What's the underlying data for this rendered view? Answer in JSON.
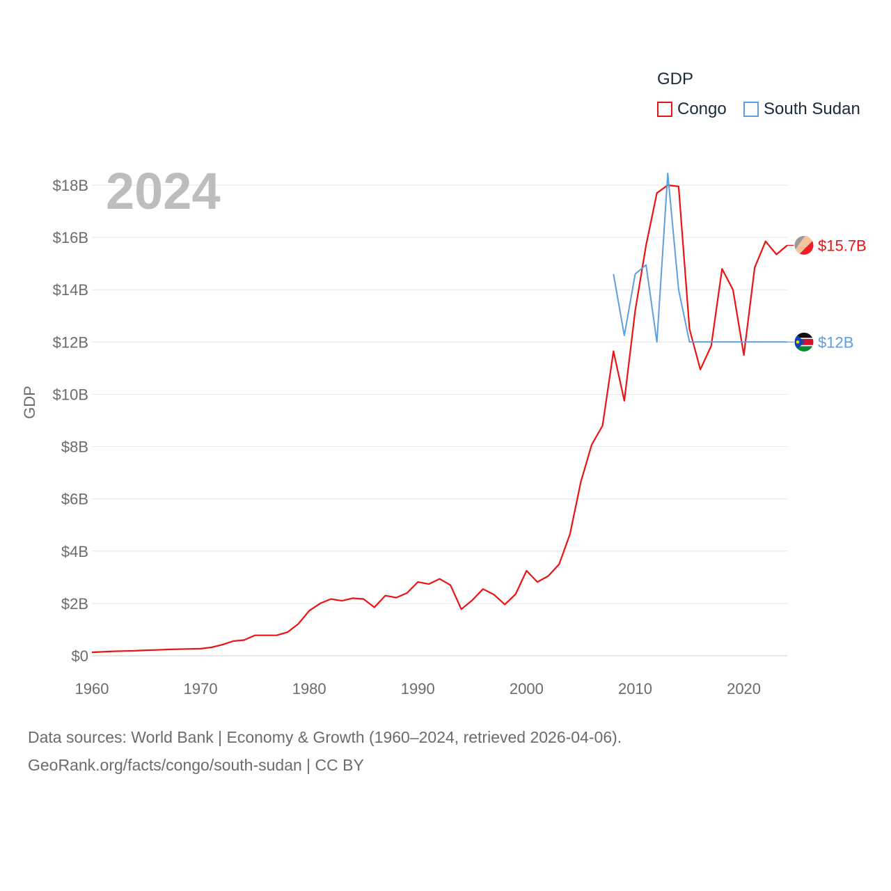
{
  "legend": {
    "title": "GDP",
    "items": [
      {
        "label": "Congo",
        "color": "#ee1111"
      },
      {
        "label": "South Sudan",
        "color": "#5aa0e0"
      }
    ]
  },
  "year_label": "2024",
  "end_labels": {
    "congo": "$15.7B",
    "south_sudan": "$12B"
  },
  "source": {
    "line1": "Data sources: World Bank | Economy & Growth (1960–2024, retrieved 2026-04-06).",
    "line2": "GeoRank.org/facts/congo/south-sudan | CC BY"
  },
  "chart_data": {
    "type": "line",
    "title": "GDP",
    "xlabel": "",
    "ylabel": "GDP",
    "xlim": [
      1960,
      2024
    ],
    "ylim": [
      0,
      18
    ],
    "y_unit": "billion USD",
    "grid": true,
    "legend_position": "top-right",
    "x_ticks": [
      1960,
      1970,
      1980,
      1990,
      2000,
      2010,
      2020
    ],
    "x_tick_labels": [
      "1960",
      "1970",
      "1980",
      "1990",
      "2000",
      "2010",
      "2020"
    ],
    "y_ticks": [
      0,
      2,
      4,
      6,
      8,
      10,
      12,
      14,
      16,
      18
    ],
    "y_tick_labels": [
      "$0",
      "$2B",
      "$4B",
      "$6B",
      "$8B",
      "$10B",
      "$12B",
      "$14B",
      "$16B",
      "$18B"
    ],
    "series": [
      {
        "name": "Congo",
        "color": "#ee1111",
        "x": [
          1960,
          1961,
          1962,
          1963,
          1964,
          1965,
          1966,
          1967,
          1968,
          1969,
          1970,
          1971,
          1972,
          1973,
          1974,
          1975,
          1976,
          1977,
          1978,
          1979,
          1980,
          1981,
          1982,
          1983,
          1984,
          1985,
          1986,
          1987,
          1988,
          1989,
          1990,
          1991,
          1992,
          1993,
          1994,
          1995,
          1996,
          1997,
          1998,
          1999,
          2000,
          2001,
          2002,
          2003,
          2004,
          2005,
          2006,
          2007,
          2008,
          2009,
          2010,
          2011,
          2012,
          2013,
          2014,
          2015,
          2016,
          2017,
          2018,
          2019,
          2020,
          2021,
          2022,
          2023,
          2024
        ],
        "values": [
          0.13,
          0.15,
          0.17,
          0.18,
          0.19,
          0.21,
          0.22,
          0.24,
          0.25,
          0.26,
          0.27,
          0.32,
          0.42,
          0.56,
          0.6,
          0.78,
          0.78,
          0.78,
          0.9,
          1.22,
          1.72,
          2.0,
          2.17,
          2.1,
          2.2,
          2.17,
          1.85,
          2.3,
          2.22,
          2.4,
          2.82,
          2.74,
          2.94,
          2.7,
          1.78,
          2.12,
          2.55,
          2.34,
          1.96,
          2.36,
          3.25,
          2.82,
          3.05,
          3.5,
          4.65,
          6.65,
          8.07,
          8.8,
          11.65,
          9.75,
          13.2,
          15.7,
          17.7,
          18.0,
          17.95,
          12.5,
          10.95,
          11.85,
          14.8,
          14.0,
          11.5,
          14.85,
          15.85,
          15.35,
          15.7
        ]
      },
      {
        "name": "South Sudan",
        "color": "#5aa0e0",
        "x": [
          2008,
          2009,
          2010,
          2011,
          2012,
          2013,
          2014,
          2015,
          2016,
          2017,
          2018,
          2019,
          2020,
          2021,
          2022,
          2023,
          2024
        ],
        "values": [
          14.6,
          12.25,
          14.6,
          14.95,
          12.0,
          18.45,
          14.0,
          12.0,
          12.0,
          12.0,
          12.0,
          12.0,
          12.0,
          12.0,
          12.0,
          12.0,
          12.0
        ]
      }
    ]
  }
}
